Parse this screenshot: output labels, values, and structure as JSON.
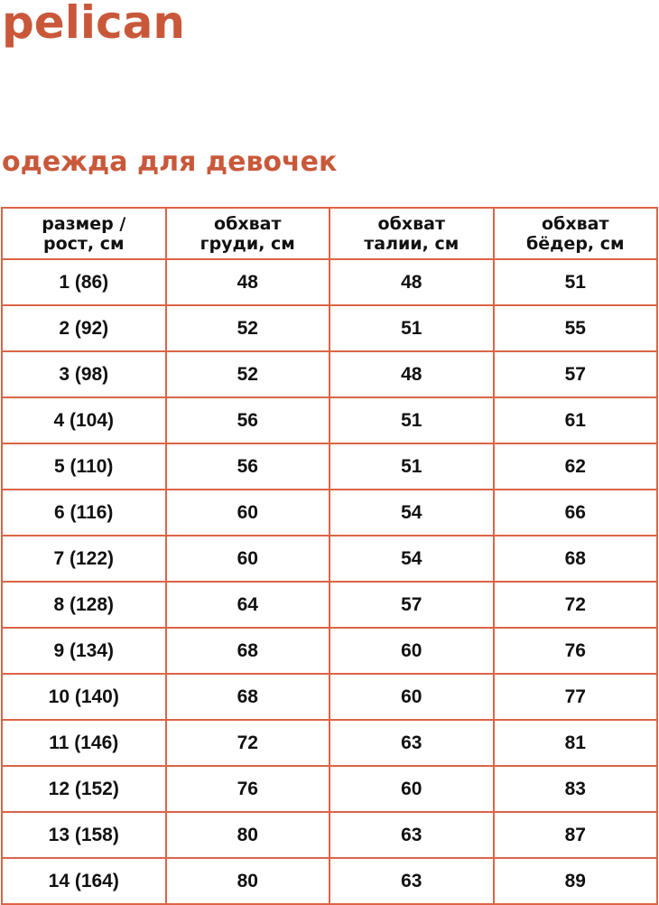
{
  "brand": {
    "logo": "pelican",
    "color": "#c9583a"
  },
  "title": "одежда для девочек",
  "table": {
    "border_color": "#dc6446",
    "headers": [
      [
        "размер /",
        "рост, см"
      ],
      [
        "обхват",
        "груди, см"
      ],
      [
        "обхват",
        "талии, см"
      ],
      [
        "обхват",
        "бёдер, см"
      ]
    ],
    "rows": [
      [
        "1 (86)",
        "48",
        "48",
        "51"
      ],
      [
        "2 (92)",
        "52",
        "51",
        "55"
      ],
      [
        "3 (98)",
        "52",
        "48",
        "57"
      ],
      [
        "4 (104)",
        "56",
        "51",
        "61"
      ],
      [
        "5 (110)",
        "56",
        "51",
        "62"
      ],
      [
        "6 (116)",
        "60",
        "54",
        "66"
      ],
      [
        "7 (122)",
        "60",
        "54",
        "68"
      ],
      [
        "8 (128)",
        "64",
        "57",
        "72"
      ],
      [
        "9 (134)",
        "68",
        "60",
        "76"
      ],
      [
        "10 (140)",
        "68",
        "60",
        "77"
      ],
      [
        "11 (146)",
        "72",
        "63",
        "81"
      ],
      [
        "12 (152)",
        "76",
        "60",
        "83"
      ],
      [
        "13 (158)",
        "80",
        "63",
        "87"
      ],
      [
        "14 (164)",
        "80",
        "63",
        "89"
      ]
    ]
  }
}
